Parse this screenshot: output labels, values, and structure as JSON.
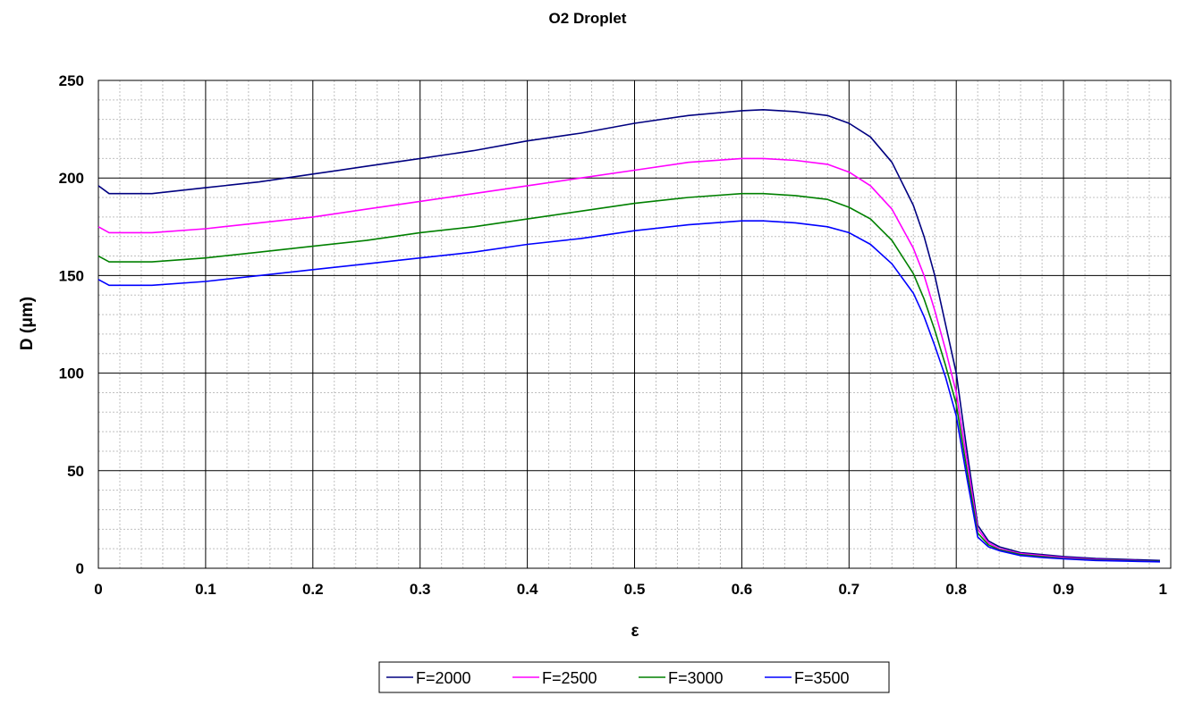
{
  "chart_data": {
    "type": "line",
    "title": "O2 Droplet",
    "xlabel": "ε",
    "ylabel": "D (μm)",
    "xlim": [
      0,
      1
    ],
    "ylim": [
      0,
      250
    ],
    "xticks": [
      "0",
      "0.1",
      "0.2",
      "0.3",
      "0.4",
      "0.5",
      "0.6",
      "0.7",
      "0.8",
      "0.9",
      "1"
    ],
    "yticks": [
      "0",
      "50",
      "100",
      "150",
      "200",
      "250"
    ],
    "grid": true,
    "legend_position": "bottom",
    "x": [
      0,
      0.01,
      0.05,
      0.1,
      0.15,
      0.2,
      0.25,
      0.3,
      0.35,
      0.4,
      0.45,
      0.5,
      0.55,
      0.6,
      0.62,
      0.65,
      0.68,
      0.7,
      0.72,
      0.74,
      0.76,
      0.77,
      0.78,
      0.79,
      0.8,
      0.81,
      0.82,
      0.83,
      0.84,
      0.86,
      0.88,
      0.9,
      0.93,
      0.96,
      0.99
    ],
    "series": [
      {
        "name": "F=2000",
        "color": "#000080",
        "values": [
          196,
          192,
          192,
          195,
          198,
          202,
          206,
          210,
          214,
          219,
          223,
          228,
          232,
          234.5,
          235,
          234,
          232,
          228,
          221,
          208,
          186,
          170,
          150,
          125,
          100,
          60,
          22,
          14,
          11,
          8,
          7,
          6,
          5,
          4.5,
          4
        ]
      },
      {
        "name": "F=2500",
        "color": "#FF00FF",
        "values": [
          175,
          172,
          172,
          174,
          177,
          180,
          184,
          188,
          192,
          196,
          200,
          204,
          208,
          210,
          210,
          209,
          207,
          203,
          196,
          184,
          164,
          150,
          132,
          112,
          90,
          55,
          20,
          13,
          10,
          7.5,
          6.5,
          5.5,
          4.5,
          4,
          3.5
        ]
      },
      {
        "name": "F=3000",
        "color": "#008000",
        "values": [
          160,
          157,
          157,
          159,
          162,
          165,
          168,
          172,
          175,
          179,
          183,
          187,
          190,
          192,
          192,
          191,
          189,
          185,
          179,
          168,
          151,
          138,
          122,
          104,
          84,
          50,
          18,
          12,
          9.5,
          7,
          6,
          5,
          4.2,
          3.8,
          3.5
        ]
      },
      {
        "name": "F=3500",
        "color": "#0000FF",
        "values": [
          148,
          145,
          145,
          147,
          150,
          153,
          156,
          159,
          162,
          166,
          169,
          173,
          176,
          178,
          178,
          177,
          175,
          172,
          166,
          156,
          141,
          129,
          114,
          98,
          78,
          46,
          16,
          11,
          9,
          6.5,
          5.5,
          4.8,
          4,
          3.6,
          3.3
        ]
      }
    ]
  }
}
